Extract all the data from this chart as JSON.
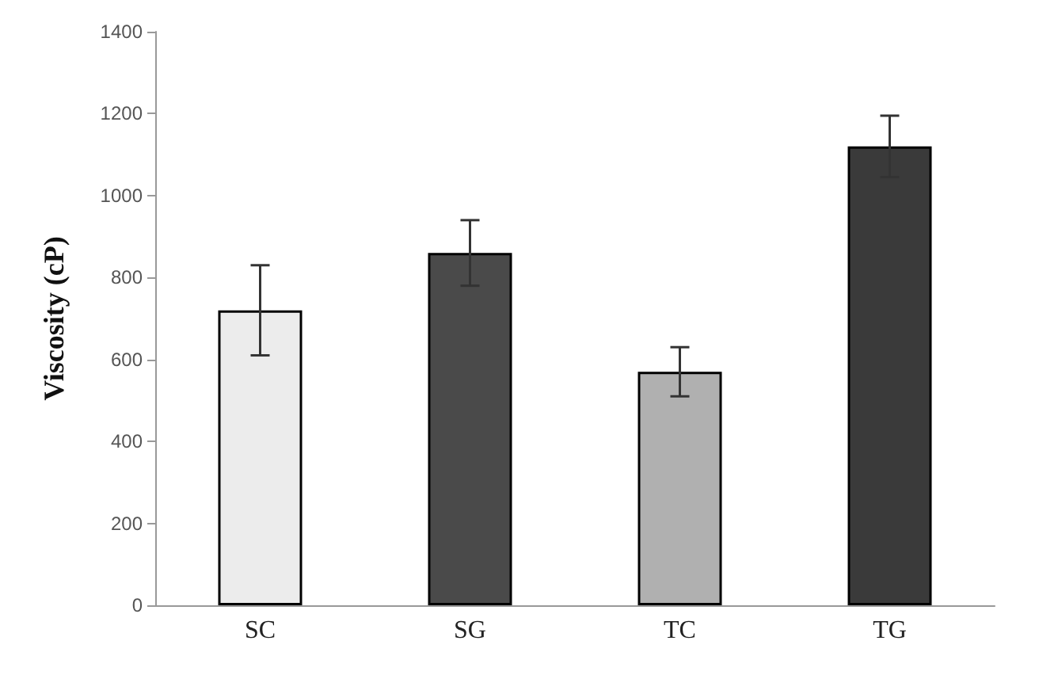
{
  "chart_data": {
    "type": "bar",
    "ylabel": "Viscosity (cP)",
    "categories": [
      "SC",
      "SG",
      "TC",
      "TG"
    ],
    "values": [
      720,
      860,
      570,
      1120
    ],
    "errors": [
      110,
      80,
      60,
      75
    ],
    "colors": [
      "#ececec",
      "#4a4a4a",
      "#b0b0b0",
      "#3a3a3a"
    ],
    "ylim": [
      0,
      1400
    ],
    "yticks": [
      0,
      200,
      400,
      600,
      800,
      1000,
      1200,
      1400
    ],
    "grid": false
  }
}
